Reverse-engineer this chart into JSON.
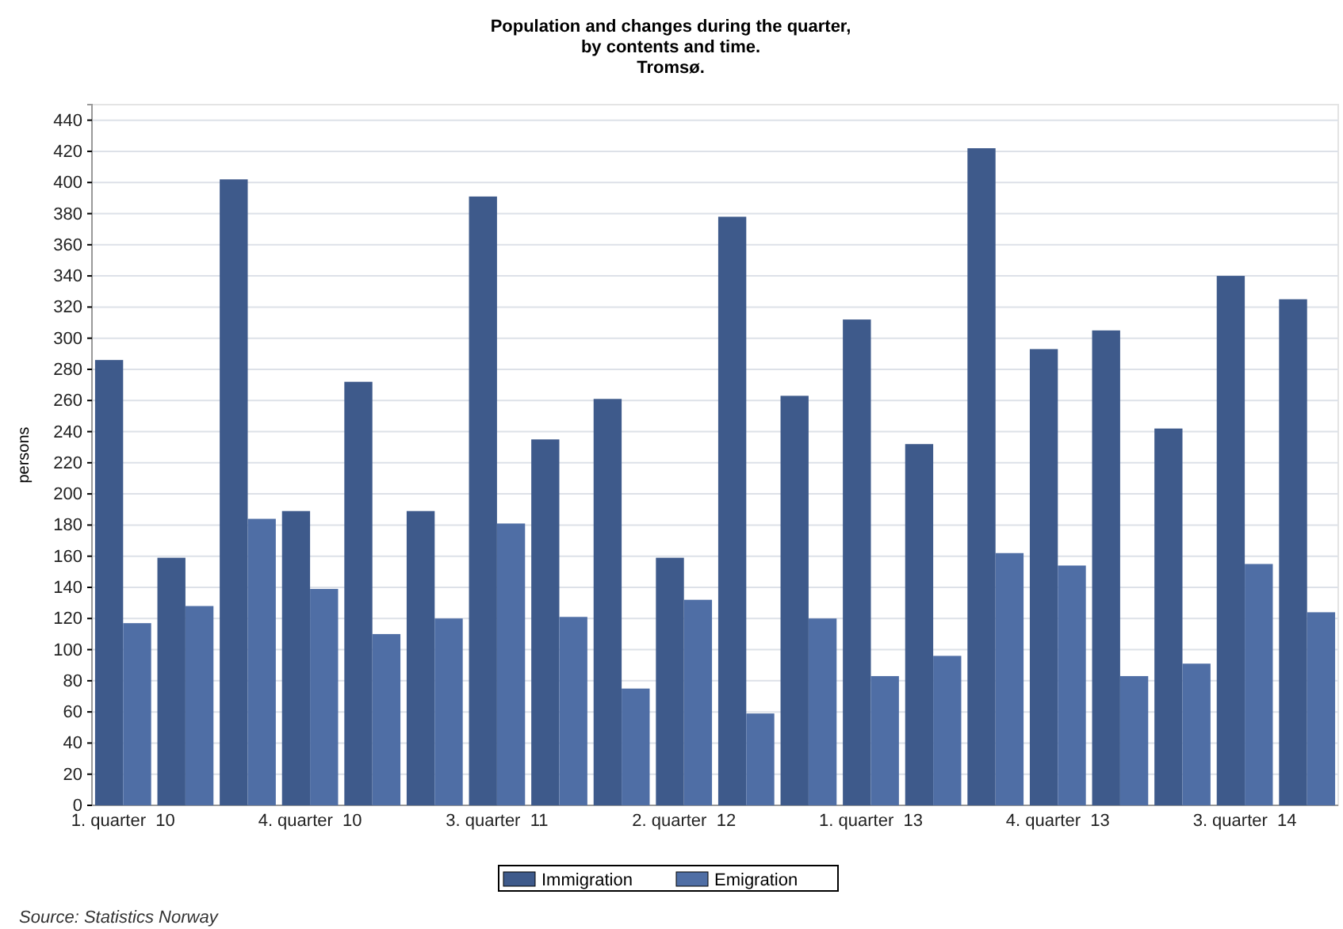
{
  "chart_data": {
    "type": "bar",
    "title": "Population and changes during the quarter,\nby contents and time.\nTromsø.",
    "ylabel": "persons",
    "categories": [
      "1. quarter  10",
      null,
      null,
      "4. quarter  10",
      null,
      null,
      "3. quarter  11",
      null,
      null,
      "2. quarter  12",
      null,
      null,
      "1. quarter  13",
      null,
      null,
      "4. quarter  13",
      null,
      null,
      "3. quarter  14",
      null
    ],
    "series": [
      {
        "name": "Immigration",
        "color": "#3e5a8b",
        "values": [
          286,
          159,
          402,
          189,
          272,
          189,
          391,
          235,
          261,
          159,
          378,
          263,
          312,
          232,
          422,
          293,
          305,
          242,
          340,
          325
        ]
      },
      {
        "name": "Emigration",
        "color": "#4f6ea5",
        "values": [
          117,
          128,
          184,
          139,
          110,
          120,
          181,
          121,
          75,
          132,
          59,
          120,
          83,
          96,
          162,
          154,
          83,
          91,
          155,
          124
        ]
      }
    ],
    "ylim": [
      0,
      450
    ],
    "yticks": [
      0,
      20,
      40,
      60,
      80,
      100,
      120,
      140,
      160,
      180,
      200,
      220,
      240,
      260,
      280,
      300,
      320,
      340,
      360,
      380,
      400,
      420,
      440
    ],
    "grid": "y",
    "legend": "bottom",
    "annotations": [
      "Source: Statistics Norway"
    ]
  }
}
